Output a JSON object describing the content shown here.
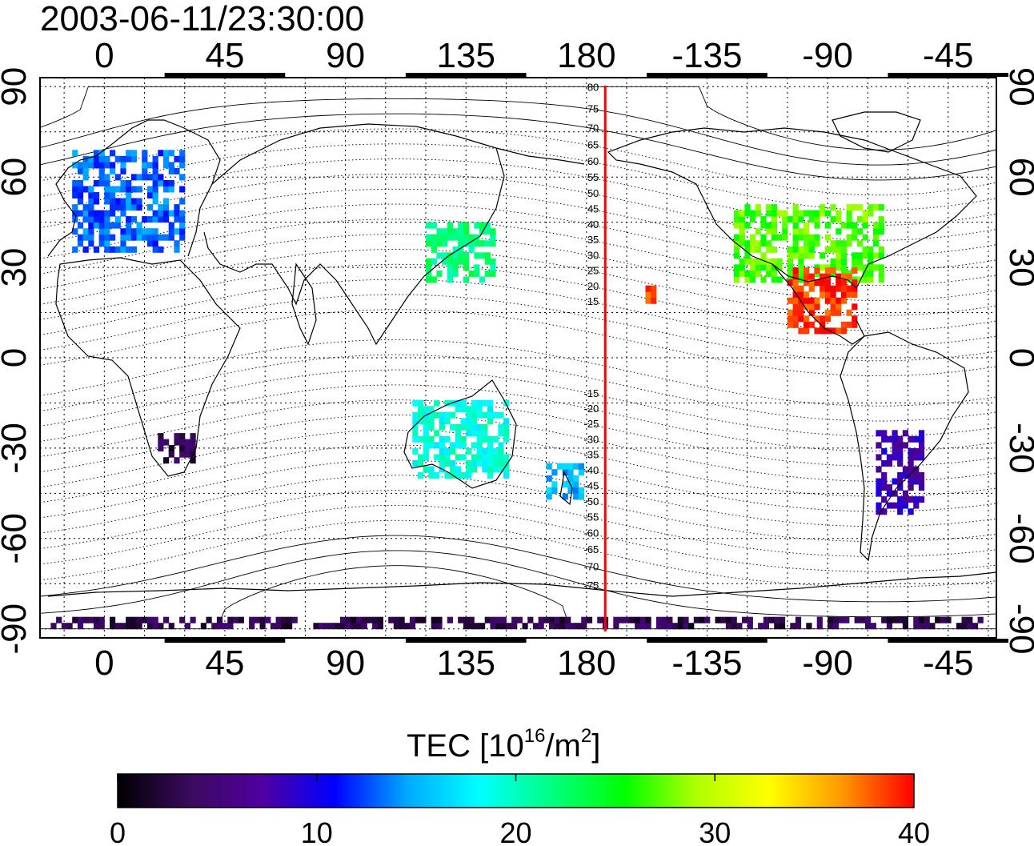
{
  "title": "2003-06-11/23:30:00",
  "map": {
    "lon_ticks": [
      "0",
      "45",
      "90",
      "135",
      "180",
      "-135",
      "-90",
      "-45"
    ],
    "lat_ticks": [
      "90",
      "60",
      "30",
      "0",
      "-30",
      "-60",
      "-90"
    ],
    "lon_tick_values": [
      0,
      45,
      90,
      135,
      180,
      225,
      270,
      315
    ],
    "lat_tick_values": [
      90,
      60,
      30,
      0,
      -30,
      -60,
      -90
    ],
    "lon_range": [
      -24,
      333
    ],
    "lat_range": [
      -93,
      93
    ],
    "grid_style": "dotted",
    "marker_line": {
      "lon": 187,
      "color": "#ff0000"
    }
  },
  "mlat_labels_north": [
    "80",
    "75",
    "70",
    "65",
    "60",
    "55",
    "50",
    "45",
    "40",
    "35",
    "30",
    "25",
    "20",
    "15"
  ],
  "mlat_labels_south": [
    "-15",
    "-20",
    "-25",
    "-30",
    "-35",
    "-40",
    "-45",
    "-50",
    "-55",
    "-60",
    "-65",
    "-70",
    "-75"
  ],
  "colorbar": {
    "label_main": "TEC  [10",
    "label_sup1": "16",
    "label_mid": "/m",
    "label_sup2": "2",
    "label_end": "]",
    "min": 0,
    "max": 40,
    "ticks": [
      "0",
      "10",
      "20",
      "30",
      "40"
    ],
    "colors": [
      "#000000",
      "#3a0a5e",
      "#5000a0",
      "#0000ff",
      "#00aaff",
      "#00ffff",
      "#00ff80",
      "#00ff00",
      "#b0ff00",
      "#ffff00",
      "#ff9900",
      "#ff0000"
    ]
  },
  "tec_regions": [
    {
      "name": "Europe",
      "lon": [
        -12,
        30
      ],
      "lat": [
        35,
        68
      ],
      "tec": 13
    },
    {
      "name": "East Asia",
      "lon": [
        120,
        145
      ],
      "lat": [
        25,
        45
      ],
      "tec": 22
    },
    {
      "name": "North America",
      "lon": [
        -125,
        -70
      ],
      "lat": [
        25,
        50
      ],
      "tec": 27
    },
    {
      "name": "Central America",
      "lon": [
        -105,
        -80
      ],
      "lat": [
        8,
        30
      ],
      "tec": 39
    },
    {
      "name": "Southern South America",
      "lon": [
        -72,
        -55
      ],
      "lat": [
        -52,
        -25
      ],
      "tec": 8
    },
    {
      "name": "Australia",
      "lon": [
        115,
        150
      ],
      "lat": [
        -40,
        -15
      ],
      "tec": 19
    },
    {
      "name": "New Zealand",
      "lon": [
        165,
        178
      ],
      "lat": [
        -47,
        -35
      ],
      "tec": 15
    },
    {
      "name": "Antarctic strip",
      "lon": [
        -20,
        330
      ],
      "lat": [
        -90,
        -86
      ],
      "tec": 3
    },
    {
      "name": "Hawaii",
      "lon": [
        -158,
        -152
      ],
      "lat": [
        18,
        24
      ],
      "tec": 39
    },
    {
      "name": "Southern Africa",
      "lon": [
        20,
        33
      ],
      "lat": [
        -35,
        -25
      ],
      "tec": 3
    }
  ]
}
